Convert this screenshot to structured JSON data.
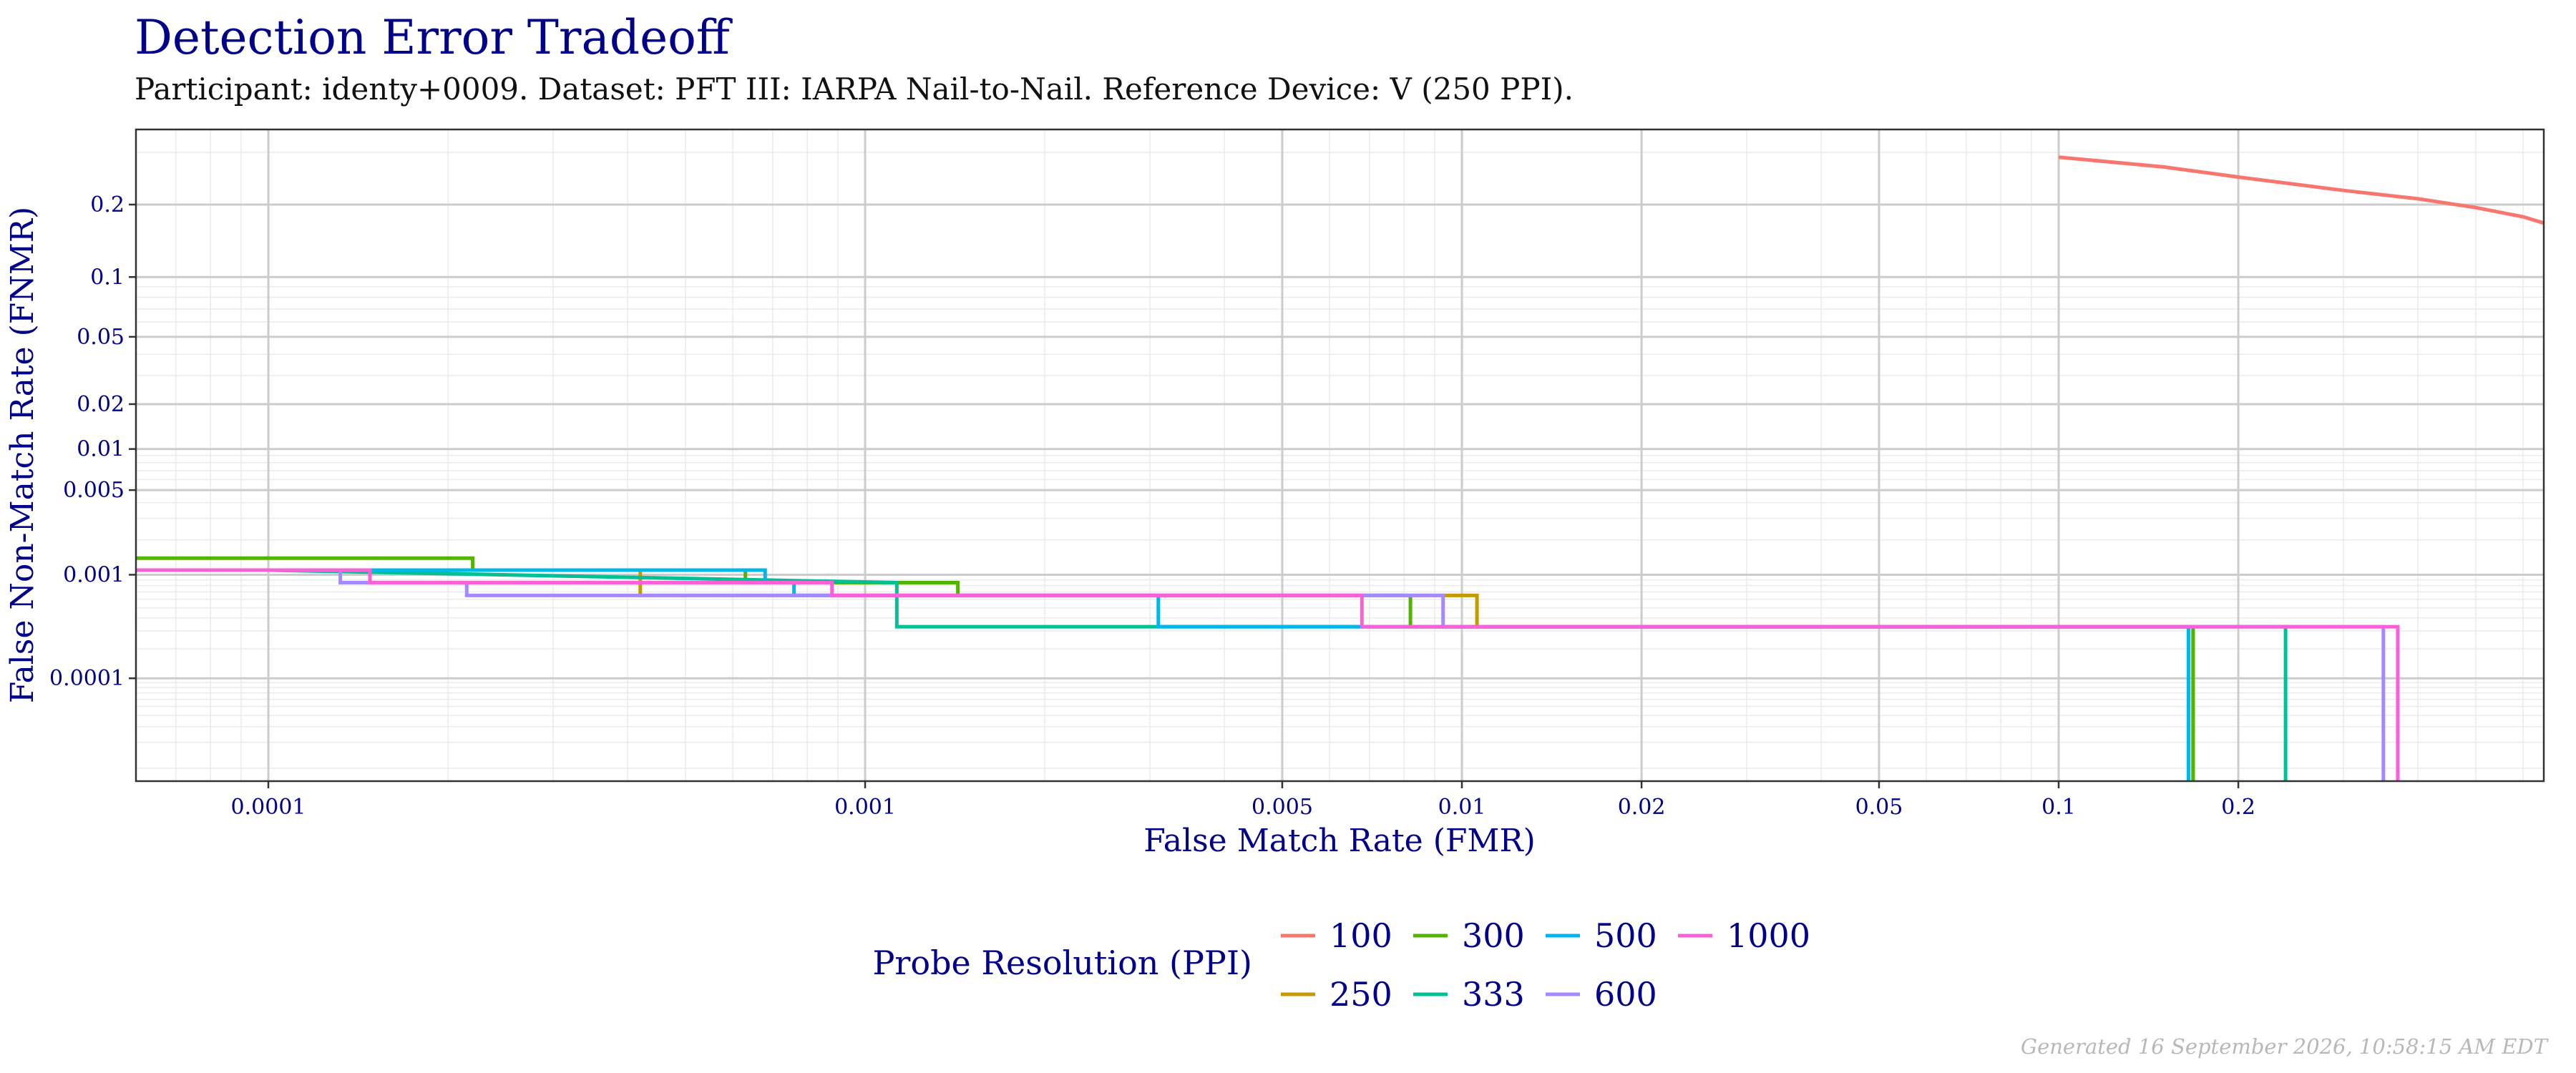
{
  "header": {
    "title": "Detection Error Tradeoff",
    "subtitle": "Participant: identy+0009. Dataset: PFT III: IARPA Nail-to-Nail. Reference Device: V (250 PPI)."
  },
  "footer": {
    "generated": "Generated 16 September 2026, 10:58:15 AM EDT"
  },
  "chart_data": {
    "type": "line",
    "title": "Detection Error Tradeoff",
    "xlabel": "False Match Rate (FMR)",
    "ylabel": "False Non-Match Rate (FNMR)",
    "xscale": "log",
    "yscale": "probit",
    "xlim": [
      6e-05,
      0.65
    ],
    "ylim": [
      7e-06,
      0.35
    ],
    "x_ticks": [
      {
        "value": 0.0001,
        "label": "0.0001"
      },
      {
        "value": 0.001,
        "label": "0.001"
      },
      {
        "value": 0.005,
        "label": "0.005"
      },
      {
        "value": 0.01,
        "label": "0.01"
      },
      {
        "value": 0.02,
        "label": "0.02"
      },
      {
        "value": 0.05,
        "label": "0.05"
      },
      {
        "value": 0.1,
        "label": "0.1"
      },
      {
        "value": 0.2,
        "label": "0.2"
      }
    ],
    "y_ticks": [
      {
        "value": 0.2,
        "label": "0.2"
      },
      {
        "value": 0.1,
        "label": "0.1"
      },
      {
        "value": 0.05,
        "label": "0.05"
      },
      {
        "value": 0.02,
        "label": "0.02"
      },
      {
        "value": 0.01,
        "label": "0.01"
      },
      {
        "value": 0.005,
        "label": "0.005"
      },
      {
        "value": 0.001,
        "label": "0.001"
      },
      {
        "value": 0.0001,
        "label": "0.0001"
      }
    ],
    "grid": true,
    "legend": {
      "title": "Probe Resolution (PPI)",
      "position": "bottom",
      "entries": [
        "100",
        "300",
        "500",
        "1000",
        "250",
        "333",
        "600"
      ]
    },
    "series": [
      {
        "name": "100",
        "color": "#F8766D",
        "points": [
          [
            0.1,
            0.29
          ],
          [
            0.15,
            0.27
          ],
          [
            0.2,
            0.25
          ],
          [
            0.3,
            0.225
          ],
          [
            0.4,
            0.21
          ],
          [
            0.5,
            0.195
          ],
          [
            0.6,
            0.18
          ],
          [
            0.65,
            0.17
          ]
        ]
      },
      {
        "name": "250",
        "color": "#C49A00",
        "points": [
          [
            6e-05,
            0.0011
          ],
          [
            0.00042,
            0.0011
          ],
          [
            0.00042,
            0.00085
          ],
          [
            0.00042,
            0.00065
          ],
          [
            0.0106,
            0.00065
          ],
          [
            0.0106,
            0.00033
          ],
          [
            0.168,
            0.00033
          ],
          [
            0.168,
            7e-06
          ]
        ]
      },
      {
        "name": "300",
        "color": "#53B400",
        "points": [
          [
            6e-05,
            0.0014
          ],
          [
            0.00022,
            0.0014
          ],
          [
            0.00022,
            0.0011
          ],
          [
            0.00063,
            0.0011
          ],
          [
            0.00063,
            0.00085
          ],
          [
            0.00143,
            0.00085
          ],
          [
            0.00143,
            0.00065
          ],
          [
            0.0082,
            0.00065
          ],
          [
            0.0082,
            0.00033
          ],
          [
            0.168,
            0.00033
          ],
          [
            0.168,
            7e-06
          ]
        ]
      },
      {
        "name": "333",
        "color": "#00C094",
        "points": [
          [
            6e-05,
            0.0011
          ],
          [
            0.0001,
            0.0011
          ],
          [
            0.0001,
            0.0011
          ],
          [
            0.00113,
            0.00085
          ],
          [
            0.00113,
            0.00033
          ],
          [
            0.24,
            0.00033
          ],
          [
            0.24,
            7e-06
          ]
        ]
      },
      {
        "name": "500",
        "color": "#00B6EB",
        "points": [
          [
            6e-05,
            0.0011
          ],
          [
            0.00068,
            0.0011
          ],
          [
            0.00068,
            0.00085
          ],
          [
            0.00076,
            0.00085
          ],
          [
            0.00076,
            0.00065
          ],
          [
            0.0031,
            0.00065
          ],
          [
            0.0031,
            0.00033
          ],
          [
            0.165,
            0.00033
          ],
          [
            0.165,
            7e-06
          ]
        ]
      },
      {
        "name": "600",
        "color": "#A58AFF",
        "points": [
          [
            6e-05,
            0.0011
          ],
          [
            0.000132,
            0.0011
          ],
          [
            0.000132,
            0.00085
          ],
          [
            0.000215,
            0.00085
          ],
          [
            0.000215,
            0.00065
          ],
          [
            0.0093,
            0.00065
          ],
          [
            0.0093,
            0.00033
          ],
          [
            0.35,
            0.00033
          ],
          [
            0.35,
            7e-06
          ]
        ]
      },
      {
        "name": "1000",
        "color": "#FB61D7",
        "points": [
          [
            6e-05,
            0.0011
          ],
          [
            0.000148,
            0.0011
          ],
          [
            0.000148,
            0.00085
          ],
          [
            0.00088,
            0.00085
          ],
          [
            0.00088,
            0.00065
          ],
          [
            0.0068,
            0.00065
          ],
          [
            0.0068,
            0.00033
          ],
          [
            0.37,
            0.00033
          ],
          [
            0.37,
            7e-06
          ]
        ]
      }
    ]
  }
}
